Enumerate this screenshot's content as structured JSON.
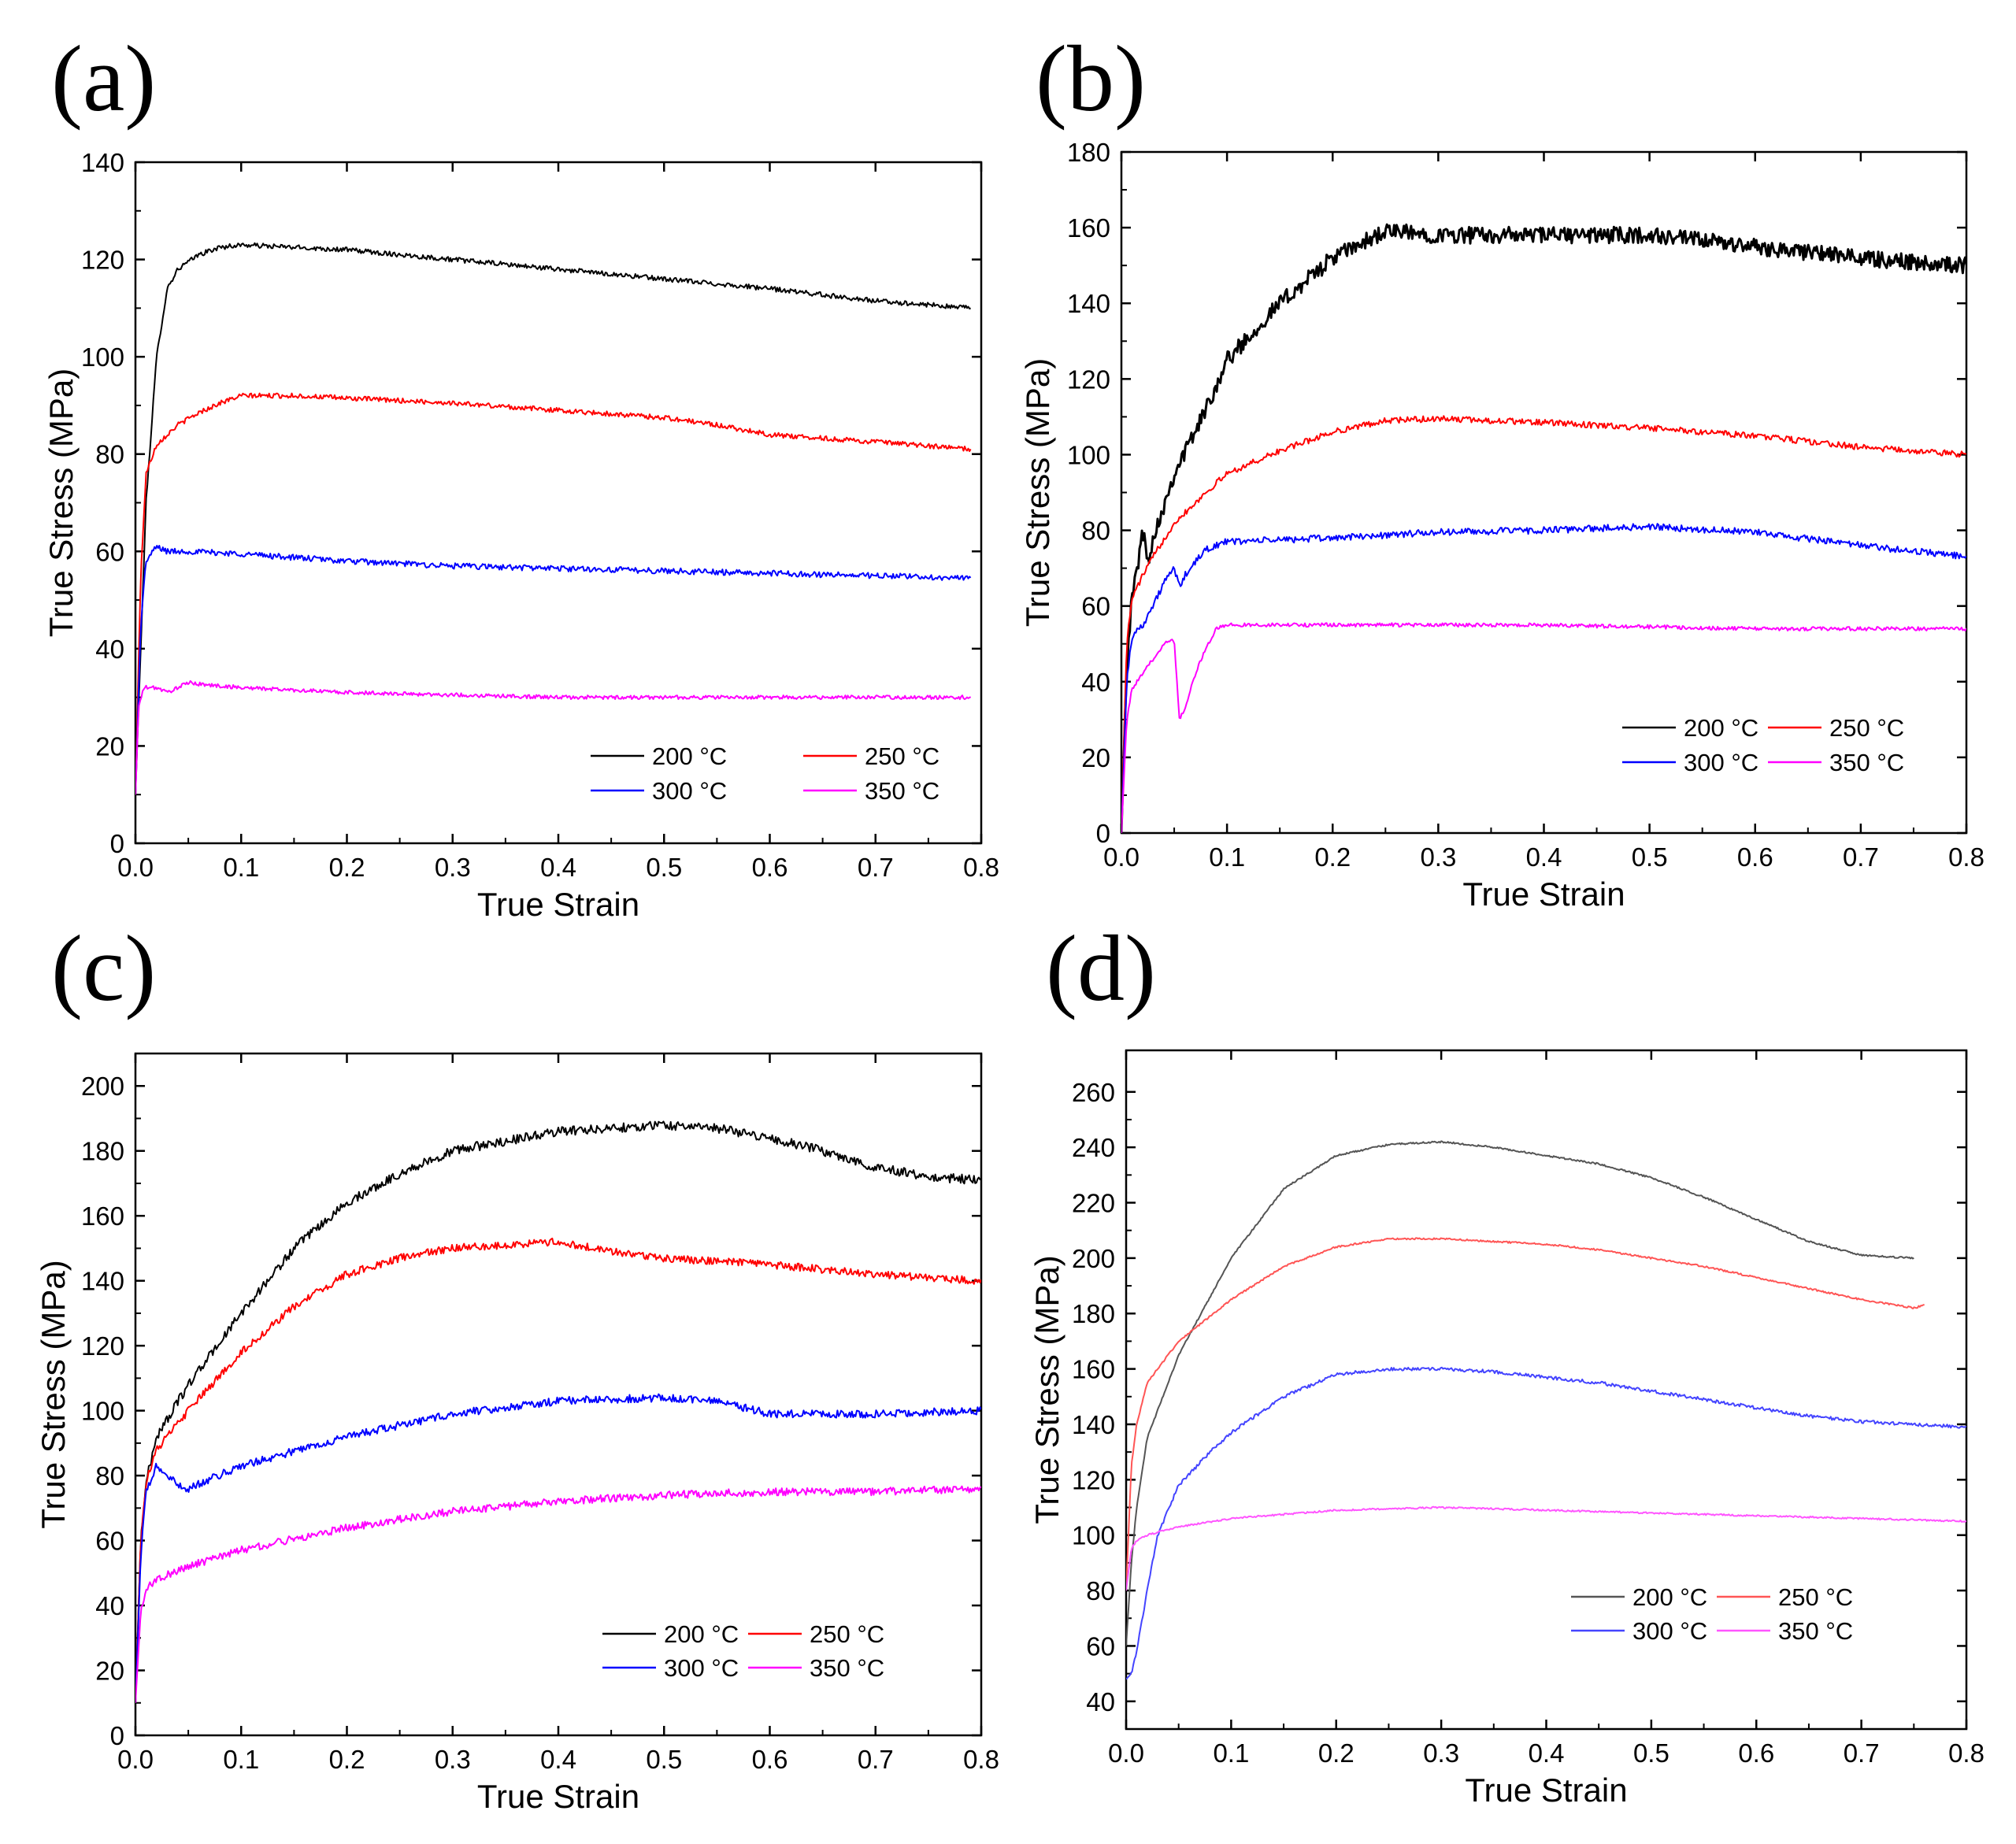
{
  "chart_data": [
    {
      "panel": "(a)",
      "type": "line",
      "title": "",
      "xlabel": "True Strain",
      "ylabel": "True Stress (MPa)",
      "xlim": [
        0,
        0.8
      ],
      "ylim": [
        0,
        140
      ],
      "xticks": [
        "0.0",
        "0.1",
        "0.2",
        "0.3",
        "0.4",
        "0.5",
        "0.6",
        "0.7",
        "0.8"
      ],
      "yticks": [
        "0",
        "20",
        "40",
        "60",
        "80",
        "100",
        "120",
        "140"
      ],
      "legend": [
        "200 °C",
        "250 °C",
        "300 °C",
        "350 °C"
      ],
      "legend_position": "bottom-right",
      "series": [
        {
          "name": "200 °C",
          "color": "#000000",
          "noise": 0.5,
          "x": [
            0,
            0.005,
            0.01,
            0.02,
            0.03,
            0.04,
            0.06,
            0.08,
            0.1,
            0.15,
            0.2,
            0.3,
            0.4,
            0.5,
            0.6,
            0.7,
            0.79
          ],
          "y": [
            10,
            40,
            70,
            100,
            114,
            118,
            121,
            122.5,
            123,
            122.5,
            122,
            120,
            118,
            116,
            114,
            111.5,
            110
          ]
        },
        {
          "name": "250 °C",
          "color": "#ff0000",
          "noise": 0.5,
          "x": [
            0,
            0.005,
            0.01,
            0.02,
            0.04,
            0.06,
            0.08,
            0.1,
            0.15,
            0.2,
            0.3,
            0.4,
            0.5,
            0.55,
            0.6,
            0.7,
            0.79
          ],
          "y": [
            10,
            55,
            76,
            82,
            86,
            88.5,
            90.5,
            92,
            92,
            91.5,
            90.5,
            89,
            87.5,
            86,
            84,
            82.5,
            81
          ]
        },
        {
          "name": "300 °C",
          "color": "#0000ff",
          "noise": 0.6,
          "x": [
            0,
            0.005,
            0.01,
            0.02,
            0.03,
            0.05,
            0.1,
            0.2,
            0.3,
            0.4,
            0.5,
            0.6,
            0.7,
            0.79
          ],
          "y": [
            10,
            45,
            58,
            61,
            60,
            60,
            59.5,
            58,
            57,
            56.5,
            56,
            55.5,
            55,
            54.5
          ]
        },
        {
          "name": "350 °C",
          "color": "#ff00ff",
          "noise": 0.4,
          "x": [
            0,
            0.003,
            0.008,
            0.02,
            0.03,
            0.04,
            0.05,
            0.07,
            0.1,
            0.2,
            0.3,
            0.4,
            0.5,
            0.6,
            0.7,
            0.79
          ],
          "y": [
            10,
            28,
            32,
            32,
            31,
            32,
            33,
            32.5,
            32,
            31,
            30.5,
            30,
            30,
            30,
            30,
            30
          ]
        }
      ]
    },
    {
      "panel": "(b)",
      "type": "line",
      "title": "",
      "xlabel": "True Strain",
      "ylabel": "True Stress (MPa)",
      "xlim": [
        0,
        0.8
      ],
      "ylim": [
        0,
        180
      ],
      "xticks": [
        "0.0",
        "0.1",
        "0.2",
        "0.3",
        "0.4",
        "0.5",
        "0.6",
        "0.7",
        "0.8"
      ],
      "yticks": [
        "0",
        "20",
        "40",
        "60",
        "80",
        "100",
        "120",
        "140",
        "160",
        "180"
      ],
      "legend": [
        "200 °C",
        "250 °C",
        "300 °C",
        "350 °C"
      ],
      "legend_position": "bottom-right",
      "series": [
        {
          "name": "200 °C",
          "color": "#000000",
          "noise": 2.2,
          "x": [
            0,
            0.005,
            0.01,
            0.015,
            0.02,
            0.025,
            0.03,
            0.05,
            0.08,
            0.1,
            0.15,
            0.2,
            0.25,
            0.3,
            0.4,
            0.5,
            0.6,
            0.7,
            0.8
          ],
          "y": [
            0,
            45,
            62,
            70,
            80,
            72,
            78,
            95,
            112,
            125,
            140,
            152,
            159,
            158,
            158,
            158,
            155,
            152,
            150
          ]
        },
        {
          "name": "250 °C",
          "color": "#ff0000",
          "noise": 0.8,
          "x": [
            0,
            0.005,
            0.01,
            0.02,
            0.03,
            0.05,
            0.08,
            0.1,
            0.15,
            0.2,
            0.25,
            0.3,
            0.4,
            0.5,
            0.6,
            0.7,
            0.8
          ],
          "y": [
            0,
            50,
            62,
            68,
            73,
            82,
            90,
            95,
            101,
            106,
            109,
            109.5,
            108.5,
            107,
            105,
            102,
            100
          ]
        },
        {
          "name": "300 °C",
          "color": "#0000ff",
          "noise": 0.9,
          "x": [
            0,
            0.005,
            0.01,
            0.02,
            0.03,
            0.04,
            0.05,
            0.055,
            0.06,
            0.08,
            0.1,
            0.2,
            0.3,
            0.4,
            0.5,
            0.6,
            0.7,
            0.8
          ],
          "y": [
            0,
            40,
            52,
            55,
            60,
            66,
            70,
            65,
            68,
            75,
            77,
            78,
            79.5,
            80,
            81,
            79.5,
            76,
            73
          ]
        },
        {
          "name": "350 °C",
          "color": "#ff00ff",
          "noise": 0.5,
          "x": [
            0,
            0.005,
            0.01,
            0.02,
            0.03,
            0.04,
            0.05,
            0.055,
            0.06,
            0.07,
            0.08,
            0.09,
            0.1,
            0.2,
            0.3,
            0.4,
            0.5,
            0.6,
            0.7,
            0.8
          ],
          "y": [
            0,
            30,
            38,
            42,
            46,
            50,
            51,
            30,
            33,
            42,
            49,
            54,
            55,
            55,
            55,
            55,
            54.5,
            54,
            54,
            54
          ]
        }
      ]
    },
    {
      "panel": "(c)",
      "type": "line",
      "title": "",
      "xlabel": "True Strain",
      "ylabel": "True Stress (MPa)",
      "xlim": [
        0,
        0.8
      ],
      "ylim": [
        0,
        210
      ],
      "xticks": [
        "0.0",
        "0.1",
        "0.2",
        "0.3",
        "0.4",
        "0.5",
        "0.6",
        "0.7",
        "0.8"
      ],
      "yticks": [
        "0",
        "20",
        "40",
        "60",
        "80",
        "100",
        "120",
        "140",
        "160",
        "180",
        "200"
      ],
      "legend": [
        "200 °C",
        "250 °C",
        "300 °C",
        "350 °C"
      ],
      "legend_position": "bottom-right",
      "series": [
        {
          "name": "200 °C",
          "color": "#000000",
          "noise": 1.4,
          "x": [
            0,
            0.005,
            0.01,
            0.02,
            0.05,
            0.1,
            0.15,
            0.2,
            0.25,
            0.3,
            0.35,
            0.4,
            0.45,
            0.5,
            0.55,
            0.6,
            0.65,
            0.7,
            0.75,
            0.8
          ],
          "y": [
            10,
            60,
            78,
            92,
            108,
            130,
            150,
            164,
            173,
            180,
            183,
            186,
            187,
            188,
            187,
            184,
            180,
            175,
            172,
            171
          ]
        },
        {
          "name": "250 °C",
          "color": "#ff0000",
          "noise": 1.2,
          "x": [
            0,
            0.005,
            0.01,
            0.02,
            0.05,
            0.1,
            0.15,
            0.2,
            0.25,
            0.3,
            0.35,
            0.4,
            0.45,
            0.5,
            0.6,
            0.7,
            0.8
          ],
          "y": [
            10,
            60,
            78,
            88,
            100,
            118,
            132,
            142,
            147,
            150,
            151,
            152,
            149,
            147,
            145,
            142,
            140
          ]
        },
        {
          "name": "300 °C",
          "color": "#0000ff",
          "noise": 1.2,
          "x": [
            0,
            0.005,
            0.01,
            0.02,
            0.03,
            0.04,
            0.05,
            0.1,
            0.2,
            0.3,
            0.4,
            0.5,
            0.55,
            0.6,
            0.7,
            0.8
          ],
          "y": [
            10,
            55,
            75,
            83,
            80,
            77,
            76,
            83,
            92,
            99,
            103,
            104,
            103,
            99,
            99,
            100
          ]
        },
        {
          "name": "350 °C",
          "color": "#ff00ff",
          "noise": 1.2,
          "x": [
            0,
            0.005,
            0.01,
            0.02,
            0.05,
            0.1,
            0.2,
            0.3,
            0.4,
            0.5,
            0.6,
            0.7,
            0.8
          ],
          "y": [
            10,
            38,
            45,
            48,
            52,
            57,
            64,
            69,
            72,
            74,
            75,
            75,
            76
          ]
        }
      ]
    },
    {
      "panel": "(d)",
      "type": "line",
      "title": "",
      "xlabel": "True Strain",
      "ylabel": "True Stress (MPa)",
      "xlim": [
        0,
        0.8
      ],
      "ylim": [
        30,
        275
      ],
      "xticks": [
        "0.0",
        "0.1",
        "0.2",
        "0.3",
        "0.4",
        "0.5",
        "0.6",
        "0.7",
        "0.8"
      ],
      "yticks": [
        "40",
        "60",
        "80",
        "100",
        "120",
        "140",
        "160",
        "180",
        "200",
        "220",
        "240",
        "260"
      ],
      "legend": [
        "200 °C",
        "250 °C",
        "300 °C",
        "350 °C"
      ],
      "legend_position": "bottom-right",
      "series": [
        {
          "name": "200 °C",
          "color": "#555555",
          "noise": 0.3,
          "x": [
            0,
            0.005,
            0.01,
            0.02,
            0.05,
            0.1,
            0.15,
            0.2,
            0.25,
            0.3,
            0.35,
            0.4,
            0.45,
            0.5,
            0.55,
            0.6,
            0.65,
            0.7,
            0.75
          ],
          "y": [
            60,
            90,
            110,
            135,
            165,
            200,
            225,
            237,
            241,
            242,
            240,
            237,
            234,
            229,
            222,
            214,
            206,
            201,
            200
          ]
        },
        {
          "name": "250 °C",
          "color": "#ff5555",
          "noise": 0.3,
          "x": [
            0,
            0.005,
            0.01,
            0.02,
            0.05,
            0.1,
            0.15,
            0.2,
            0.25,
            0.3,
            0.35,
            0.4,
            0.45,
            0.5,
            0.55,
            0.6,
            0.65,
            0.7,
            0.75,
            0.76
          ],
          "y": [
            80,
            125,
            140,
            155,
            170,
            185,
            197,
            204,
            207,
            207,
            206,
            205,
            203,
            200,
            197,
            193,
            189,
            185,
            182,
            183
          ]
        },
        {
          "name": "300 °C",
          "color": "#4444ff",
          "noise": 0.6,
          "x": [
            0,
            0.005,
            0.01,
            0.02,
            0.03,
            0.05,
            0.08,
            0.1,
            0.15,
            0.2,
            0.25,
            0.3,
            0.35,
            0.4,
            0.45,
            0.5,
            0.55,
            0.6,
            0.65,
            0.7,
            0.75,
            0.8
          ],
          "y": [
            48,
            50,
            58,
            80,
            100,
            118,
            130,
            137,
            150,
            158,
            160,
            160,
            159,
            157,
            155,
            152,
            149,
            146,
            143,
            141,
            140,
            139
          ]
        },
        {
          "name": "350 °C",
          "color": "#ff55ff",
          "noise": 0.3,
          "x": [
            0,
            0.005,
            0.01,
            0.02,
            0.05,
            0.1,
            0.2,
            0.3,
            0.4,
            0.5,
            0.6,
            0.7,
            0.8
          ],
          "y": [
            80,
            95,
            98,
            100,
            103,
            106,
            109,
            110,
            109,
            108,
            107,
            106,
            105
          ]
        }
      ]
    }
  ]
}
